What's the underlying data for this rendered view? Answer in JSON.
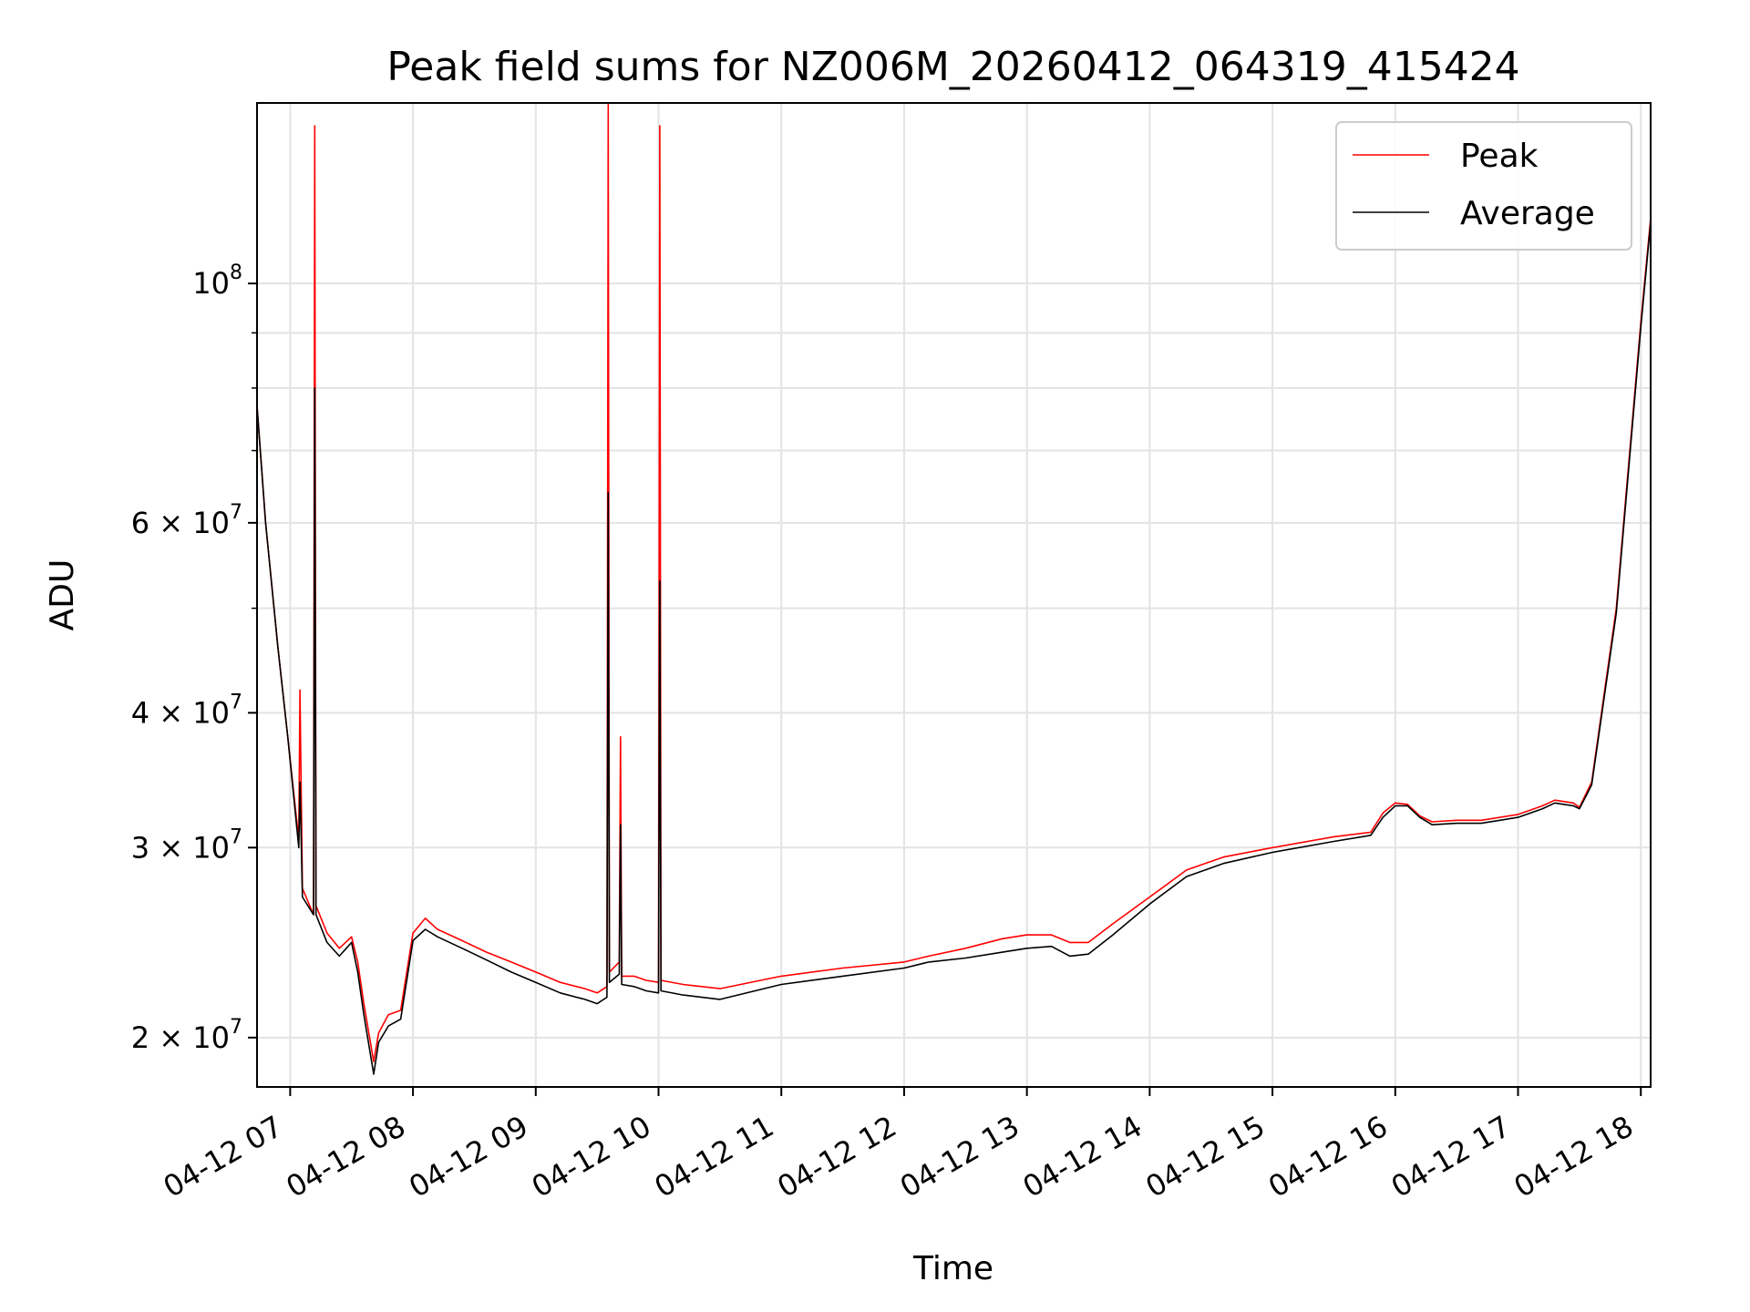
{
  "chart_data": {
    "type": "line",
    "title": "Peak field sums for NZ006M_20260412_064319_415424",
    "xlabel": "Time",
    "ylabel": "ADU",
    "yscale": "log",
    "ylim": [
      18000000,
      147000000
    ],
    "xlim": [
      6.73,
      18.08
    ],
    "x_unit": "hour of 2026-04-12",
    "grid": true,
    "legend_position": "top-right",
    "x_ticks": [
      {
        "value": 7,
        "label": "04-12 07"
      },
      {
        "value": 8,
        "label": "04-12 08"
      },
      {
        "value": 9,
        "label": "04-12 09"
      },
      {
        "value": 10,
        "label": "04-12 10"
      },
      {
        "value": 11,
        "label": "04-12 11"
      },
      {
        "value": 12,
        "label": "04-12 12"
      },
      {
        "value": 13,
        "label": "04-12 13"
      },
      {
        "value": 14,
        "label": "04-12 14"
      },
      {
        "value": 15,
        "label": "04-12 15"
      },
      {
        "value": 16,
        "label": "04-12 16"
      },
      {
        "value": 17,
        "label": "04-12 17"
      },
      {
        "value": 18,
        "label": "04-12 18"
      }
    ],
    "y_ticks": [
      {
        "value": 20000000,
        "mantissa": "2 × 10",
        "exp": "7"
      },
      {
        "value": 30000000,
        "mantissa": "3 × 10",
        "exp": "7"
      },
      {
        "value": 40000000,
        "mantissa": "4 × 10",
        "exp": "7"
      },
      {
        "value": 60000000,
        "mantissa": "6 × 10",
        "exp": "7"
      },
      {
        "value": 100000000,
        "mantissa": "10",
        "exp": "8"
      }
    ],
    "y_minor_ticks": [
      50000000,
      70000000,
      80000000,
      90000000
    ],
    "series": [
      {
        "name": "Peak",
        "color": "#ff0000",
        "x": [
          6.73,
          6.8,
          6.9,
          6.98,
          7.07,
          7.08,
          7.1,
          7.19,
          7.2,
          7.21,
          7.3,
          7.4,
          7.5,
          7.55,
          7.6,
          7.68,
          7.72,
          7.8,
          7.9,
          8.0,
          8.1,
          8.2,
          8.4,
          8.6,
          8.8,
          9.0,
          9.2,
          9.4,
          9.5,
          9.58,
          9.59,
          9.6,
          9.68,
          9.69,
          9.7,
          9.8,
          9.9,
          10.0,
          10.01,
          10.02,
          10.2,
          10.5,
          11.0,
          11.5,
          12.0,
          12.2,
          12.5,
          12.8,
          13.0,
          13.2,
          13.35,
          13.5,
          13.7,
          14.0,
          14.3,
          14.6,
          15.0,
          15.5,
          15.8,
          15.9,
          16.0,
          16.1,
          16.2,
          16.3,
          16.5,
          16.7,
          17.0,
          17.2,
          17.3,
          17.45,
          17.5,
          17.6,
          17.8,
          18.0,
          18.08
        ],
        "y": [
          77000000,
          60000000,
          46000000,
          38000000,
          30500000,
          42000000,
          27500000,
          26000000,
          140000000,
          26500000,
          25000000,
          24200000,
          24800000,
          23500000,
          21500000,
          19000000,
          20200000,
          21000000,
          21200000,
          25000000,
          25800000,
          25200000,
          24600000,
          24000000,
          23500000,
          23000000,
          22500000,
          22200000,
          22000000,
          22300000,
          147000000,
          23000000,
          23500000,
          38000000,
          22800000,
          22800000,
          22600000,
          22500000,
          140000000,
          22600000,
          22400000,
          22200000,
          22800000,
          23200000,
          23500000,
          23800000,
          24200000,
          24700000,
          24900000,
          24900000,
          24500000,
          24500000,
          25500000,
          27000000,
          28600000,
          29400000,
          30000000,
          30700000,
          31000000,
          32300000,
          33000000,
          32900000,
          32100000,
          31700000,
          31800000,
          31800000,
          32200000,
          32800000,
          33200000,
          33000000,
          32700000,
          34500000,
          50000000,
          92000000,
          115000000
        ]
      },
      {
        "name": "Average",
        "color": "#000000",
        "x": [
          6.73,
          6.8,
          6.9,
          6.98,
          7.07,
          7.08,
          7.1,
          7.19,
          7.2,
          7.21,
          7.3,
          7.4,
          7.5,
          7.55,
          7.6,
          7.68,
          7.72,
          7.8,
          7.9,
          8.0,
          8.1,
          8.2,
          8.4,
          8.6,
          8.8,
          9.0,
          9.2,
          9.4,
          9.5,
          9.58,
          9.59,
          9.6,
          9.68,
          9.69,
          9.7,
          9.8,
          9.9,
          10.0,
          10.01,
          10.02,
          10.2,
          10.5,
          11.0,
          11.5,
          12.0,
          12.2,
          12.5,
          12.8,
          13.0,
          13.2,
          13.35,
          13.5,
          13.7,
          14.0,
          14.3,
          14.6,
          15.0,
          15.5,
          15.8,
          15.9,
          16.0,
          16.1,
          16.2,
          16.3,
          16.5,
          16.7,
          17.0,
          17.2,
          17.3,
          17.45,
          17.5,
          17.6,
          17.8,
          18.0,
          18.08
        ],
        "y": [
          77000000,
          60000000,
          46000000,
          38000000,
          30000000,
          34500000,
          27000000,
          26000000,
          80000000,
          26000000,
          24500000,
          23800000,
          24500000,
          23000000,
          21000000,
          18500000,
          19800000,
          20500000,
          20800000,
          24600000,
          25200000,
          24800000,
          24200000,
          23600000,
          23000000,
          22500000,
          22000000,
          21700000,
          21500000,
          21800000,
          64000000,
          22500000,
          22900000,
          31500000,
          22400000,
          22300000,
          22100000,
          22000000,
          53000000,
          22100000,
          21900000,
          21700000,
          22400000,
          22800000,
          23200000,
          23500000,
          23700000,
          24000000,
          24200000,
          24300000,
          23800000,
          23900000,
          24900000,
          26600000,
          28200000,
          29000000,
          29700000,
          30400000,
          30800000,
          32000000,
          32800000,
          32800000,
          32000000,
          31500000,
          31600000,
          31600000,
          32000000,
          32600000,
          33000000,
          32800000,
          32600000,
          34300000,
          49500000,
          91000000,
          114000000
        ]
      }
    ]
  }
}
